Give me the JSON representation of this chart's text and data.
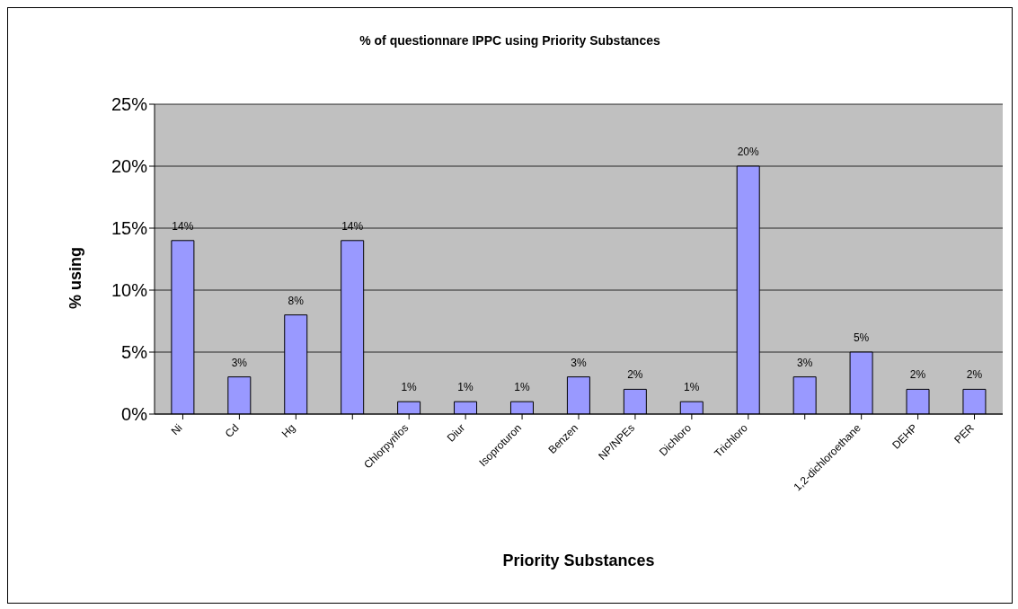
{
  "chart_data": {
    "type": "bar",
    "title": "% of questionnare IPPC using Priority Substances",
    "xlabel": "Priority Substances",
    "ylabel": "% using",
    "categories": [
      "Ni",
      "Cd",
      "Hg",
      null,
      "Chlorpyrifos",
      "Diur",
      "Isoproturon",
      "Benzen",
      "NP/NPEs",
      "Dichloro",
      "Trichloro",
      null,
      "1,2-dichloroethane",
      "DEHP",
      "PER"
    ],
    "values": [
      14,
      3,
      8,
      14,
      1,
      1,
      1,
      3,
      2,
      1,
      20,
      3,
      5,
      2,
      2
    ],
    "value_labels": [
      "14%",
      "3%",
      "8%",
      "14%",
      "1%",
      "1%",
      "1%",
      "3%",
      "2%",
      "1%",
      "20%",
      "3%",
      "5%",
      "2%",
      "2%"
    ],
    "color": "#9999ff",
    "ylim": [
      0,
      25
    ],
    "yticks": [
      {
        "value": 0,
        "label": "0%"
      },
      {
        "value": 5,
        "label": "5%"
      },
      {
        "value": 10,
        "label": "10%"
      },
      {
        "value": 15,
        "label": "15%"
      },
      {
        "value": 20,
        "label": "20%"
      },
      {
        "value": 25,
        "label": "25%"
      }
    ],
    "grid": "y"
  }
}
